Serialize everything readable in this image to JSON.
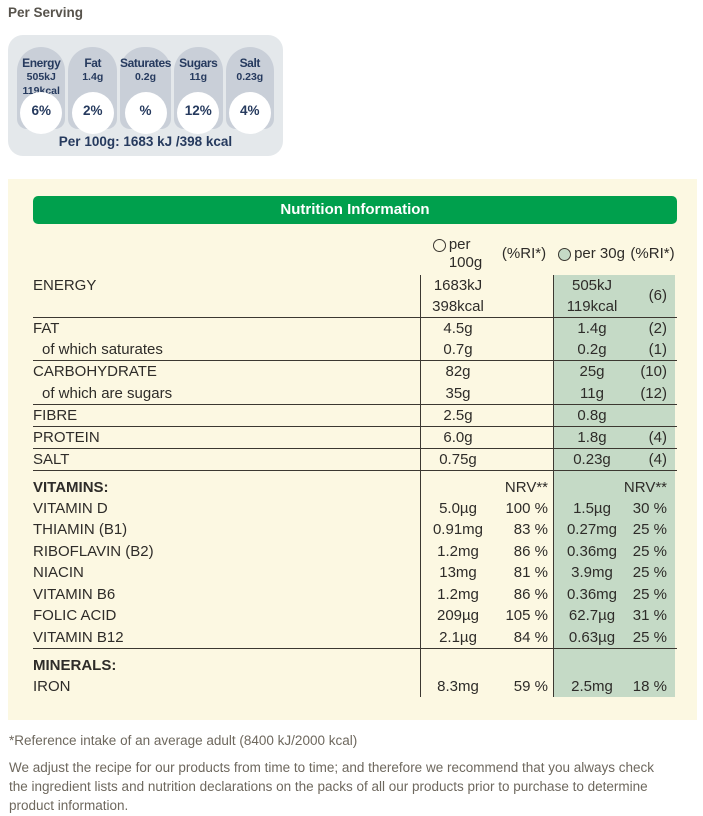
{
  "per_serving": {
    "title": "Per Serving",
    "badges": [
      {
        "label": "Energy",
        "values": [
          "505kJ",
          "119kcal"
        ],
        "percent": "6%"
      },
      {
        "label": "Fat",
        "values": [
          "1.4g"
        ],
        "percent": "2%"
      },
      {
        "label": "Saturates",
        "values": [
          "0.2g"
        ],
        "percent": "%"
      },
      {
        "label": "Sugars",
        "values": [
          "11g"
        ],
        "percent": "12%"
      },
      {
        "label": "Salt",
        "values": [
          "0.23g"
        ],
        "percent": "4%"
      }
    ],
    "per_100g_summary": "Per 100g: 1683 kJ /398 kcal"
  },
  "nutrition_table": {
    "title": "Nutrition Information",
    "header": {
      "per_100g_line1": "per",
      "per_100g_line2": "100g",
      "ri_100g": "(%RI*)",
      "per_30g": "per 30g",
      "ri_30g": "(%RI*)"
    },
    "rows": [
      {
        "label": "ENERGY",
        "indent": false,
        "bold": false,
        "section": false,
        "sep": true,
        "val100": [
          "1683kJ",
          "398kcal"
        ],
        "ri100": "",
        "val30": [
          "505kJ",
          "119kcal"
        ],
        "ri30": "(6)"
      },
      {
        "label": "FAT",
        "indent": false,
        "bold": false,
        "section": false,
        "sep": false,
        "val100": [
          "4.5g"
        ],
        "ri100": "",
        "val30": [
          "1.4g"
        ],
        "ri30": "(2)"
      },
      {
        "label": "of which saturates",
        "indent": true,
        "bold": false,
        "section": false,
        "sep": true,
        "val100": [
          "0.7g"
        ],
        "ri100": "",
        "val30": [
          "0.2g"
        ],
        "ri30": "(1)"
      },
      {
        "label": "CARBOHYDRATE",
        "indent": false,
        "bold": false,
        "section": false,
        "sep": false,
        "val100": [
          "82g"
        ],
        "ri100": "",
        "val30": [
          "25g"
        ],
        "ri30": "(10)"
      },
      {
        "label": "of which are sugars",
        "indent": true,
        "bold": false,
        "section": false,
        "sep": true,
        "val100": [
          "35g"
        ],
        "ri100": "",
        "val30": [
          "11g"
        ],
        "ri30": "(12)"
      },
      {
        "label": "FIBRE",
        "indent": false,
        "bold": false,
        "section": false,
        "sep": true,
        "val100": [
          "2.5g"
        ],
        "ri100": "",
        "val30": [
          "0.8g"
        ],
        "ri30": ""
      },
      {
        "label": "PROTEIN",
        "indent": false,
        "bold": false,
        "section": false,
        "sep": true,
        "val100": [
          "6.0g"
        ],
        "ri100": "",
        "val30": [
          "1.8g"
        ],
        "ri30": "(4)"
      },
      {
        "label": "SALT",
        "indent": false,
        "bold": false,
        "section": false,
        "sep": true,
        "val100": [
          "0.75g"
        ],
        "ri100": "",
        "val30": [
          "0.23g"
        ],
        "ri30": "(4)"
      },
      {
        "label": "VITAMINS:",
        "indent": false,
        "bold": true,
        "section": true,
        "sep": false,
        "val100": [],
        "ri100": "NRV**",
        "val30": [],
        "ri30": "NRV**"
      },
      {
        "label": "VITAMIN D",
        "indent": false,
        "bold": false,
        "section": false,
        "sep": false,
        "val100": [
          "5.0µg"
        ],
        "ri100": "100 %",
        "val30": [
          "1.5µg"
        ],
        "ri30": "30 %"
      },
      {
        "label": "THIAMIN (B1)",
        "indent": false,
        "bold": false,
        "section": false,
        "sep": false,
        "val100": [
          "0.91mg"
        ],
        "ri100": "83 %",
        "val30": [
          "0.27mg"
        ],
        "ri30": "25 %"
      },
      {
        "label": "RIBOFLAVIN (B2)",
        "indent": false,
        "bold": false,
        "section": false,
        "sep": false,
        "val100": [
          "1.2mg"
        ],
        "ri100": "86 %",
        "val30": [
          "0.36mg"
        ],
        "ri30": "25 %"
      },
      {
        "label": "NIACIN",
        "indent": false,
        "bold": false,
        "section": false,
        "sep": false,
        "val100": [
          "13mg"
        ],
        "ri100": "81 %",
        "val30": [
          "3.9mg"
        ],
        "ri30": "25 %"
      },
      {
        "label": "VITAMIN B6",
        "indent": false,
        "bold": false,
        "section": false,
        "sep": false,
        "val100": [
          "1.2mg"
        ],
        "ri100": "86 %",
        "val30": [
          "0.36mg"
        ],
        "ri30": "25 %"
      },
      {
        "label": "FOLIC ACID",
        "indent": false,
        "bold": false,
        "section": false,
        "sep": false,
        "val100": [
          "209µg"
        ],
        "ri100": "105 %",
        "val30": [
          "62.7µg"
        ],
        "ri30": "31 %"
      },
      {
        "label": "VITAMIN B12",
        "indent": false,
        "bold": false,
        "section": false,
        "sep": true,
        "val100": [
          "2.1µg"
        ],
        "ri100": "84 %",
        "val30": [
          "0.63µg"
        ],
        "ri30": "25 %"
      },
      {
        "label": "MINERALS:",
        "indent": false,
        "bold": true,
        "section": true,
        "sep": false,
        "val100": [],
        "ri100": "",
        "val30": [],
        "ri30": ""
      },
      {
        "label": "IRON",
        "indent": false,
        "bold": false,
        "section": false,
        "sep": false,
        "val100": [
          "8.3mg"
        ],
        "ri100": "59 %",
        "val30": [
          "2.5mg"
        ],
        "ri30": "18 %"
      }
    ]
  },
  "footnotes": {
    "reference": "*Reference intake of an average adult (8400 kJ/2000 kcal)",
    "disclaimer": "We adjust the recipe for our products from time to time; and therefore we recommend that you always check the ingredient lists and nutrition declarations on the packs of all our products prior to purchase to determine product information."
  },
  "colors": {
    "header_green": "#00a04d",
    "column_green": "#c5dac6",
    "panel_cream": "#fcf8e2",
    "badge_gray": "#c9cfd8",
    "badge_container_gray": "#e4e8eb",
    "badge_text_navy": "#263a5e",
    "footnote_gray": "#6e685e"
  }
}
